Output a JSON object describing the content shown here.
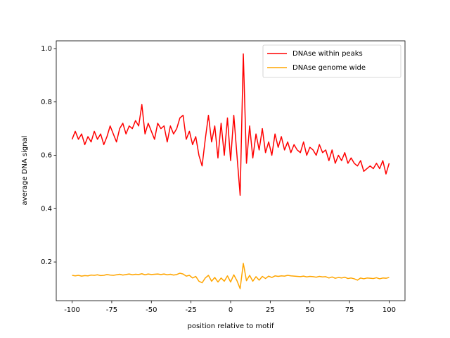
{
  "chart_data": {
    "type": "line",
    "xlabel": "position relative to motif",
    "ylabel": "average DNA signal",
    "x": [
      -100,
      -98,
      -96,
      -94,
      -92,
      -90,
      -88,
      -86,
      -84,
      -82,
      -80,
      -78,
      -76,
      -74,
      -72,
      -70,
      -68,
      -66,
      -64,
      -62,
      -60,
      -58,
      -56,
      -54,
      -52,
      -50,
      -48,
      -46,
      -44,
      -42,
      -40,
      -38,
      -36,
      -34,
      -32,
      -30,
      -28,
      -26,
      -24,
      -22,
      -20,
      -18,
      -16,
      -14,
      -12,
      -10,
      -8,
      -6,
      -4,
      -2,
      0,
      2,
      4,
      6,
      8,
      10,
      12,
      14,
      16,
      18,
      20,
      22,
      24,
      26,
      28,
      30,
      32,
      34,
      36,
      38,
      40,
      42,
      44,
      46,
      48,
      50,
      52,
      54,
      56,
      58,
      60,
      62,
      64,
      66,
      68,
      70,
      72,
      74,
      76,
      78,
      80,
      82,
      84,
      86,
      88,
      90,
      92,
      94,
      96,
      98,
      100
    ],
    "series": [
      {
        "name": "DNAse within peaks",
        "color": "#ff0000",
        "values": [
          0.66,
          0.69,
          0.66,
          0.68,
          0.64,
          0.67,
          0.65,
          0.69,
          0.66,
          0.68,
          0.64,
          0.67,
          0.71,
          0.68,
          0.65,
          0.7,
          0.72,
          0.68,
          0.71,
          0.7,
          0.73,
          0.71,
          0.79,
          0.68,
          0.72,
          0.69,
          0.66,
          0.72,
          0.7,
          0.71,
          0.65,
          0.71,
          0.68,
          0.7,
          0.74,
          0.75,
          0.66,
          0.69,
          0.64,
          0.67,
          0.6,
          0.56,
          0.66,
          0.75,
          0.65,
          0.71,
          0.59,
          0.72,
          0.6,
          0.74,
          0.58,
          0.75,
          0.6,
          0.45,
          0.98,
          0.57,
          0.71,
          0.59,
          0.68,
          0.62,
          0.7,
          0.61,
          0.65,
          0.6,
          0.68,
          0.63,
          0.67,
          0.62,
          0.65,
          0.61,
          0.64,
          0.62,
          0.61,
          0.65,
          0.6,
          0.63,
          0.62,
          0.6,
          0.64,
          0.61,
          0.62,
          0.58,
          0.62,
          0.57,
          0.6,
          0.58,
          0.61,
          0.57,
          0.59,
          0.57,
          0.56,
          0.58,
          0.54,
          0.55,
          0.56,
          0.55,
          0.57,
          0.55,
          0.58,
          0.53,
          0.57
        ]
      },
      {
        "name": "DNAse genome wide",
        "color": "#ffa500",
        "values": [
          0.15,
          0.148,
          0.15,
          0.147,
          0.149,
          0.148,
          0.151,
          0.15,
          0.152,
          0.149,
          0.15,
          0.153,
          0.151,
          0.15,
          0.152,
          0.154,
          0.151,
          0.153,
          0.155,
          0.152,
          0.154,
          0.153,
          0.156,
          0.152,
          0.155,
          0.153,
          0.154,
          0.155,
          0.153,
          0.155,
          0.152,
          0.154,
          0.151,
          0.153,
          0.158,
          0.155,
          0.147,
          0.15,
          0.14,
          0.146,
          0.128,
          0.122,
          0.14,
          0.15,
          0.128,
          0.142,
          0.125,
          0.14,
          0.128,
          0.148,
          0.125,
          0.152,
          0.13,
          0.1,
          0.195,
          0.13,
          0.15,
          0.128,
          0.145,
          0.132,
          0.146,
          0.138,
          0.147,
          0.142,
          0.148,
          0.146,
          0.148,
          0.147,
          0.15,
          0.148,
          0.147,
          0.146,
          0.145,
          0.147,
          0.144,
          0.146,
          0.145,
          0.143,
          0.146,
          0.144,
          0.145,
          0.14,
          0.144,
          0.139,
          0.142,
          0.14,
          0.143,
          0.138,
          0.14,
          0.137,
          0.132,
          0.14,
          0.137,
          0.14,
          0.139,
          0.138,
          0.141,
          0.137,
          0.14,
          0.139,
          0.142
        ]
      }
    ],
    "xlim": [
      -110,
      110
    ],
    "ylim": [
      0.055,
      1.029
    ],
    "xticks": [
      -100,
      -75,
      -50,
      -25,
      0,
      25,
      50,
      75,
      100
    ],
    "yticks": [
      0.2,
      0.4,
      0.6,
      0.8,
      {
        "value": 1.0,
        "label": "1.0"
      }
    ],
    "legend": "upper right"
  }
}
